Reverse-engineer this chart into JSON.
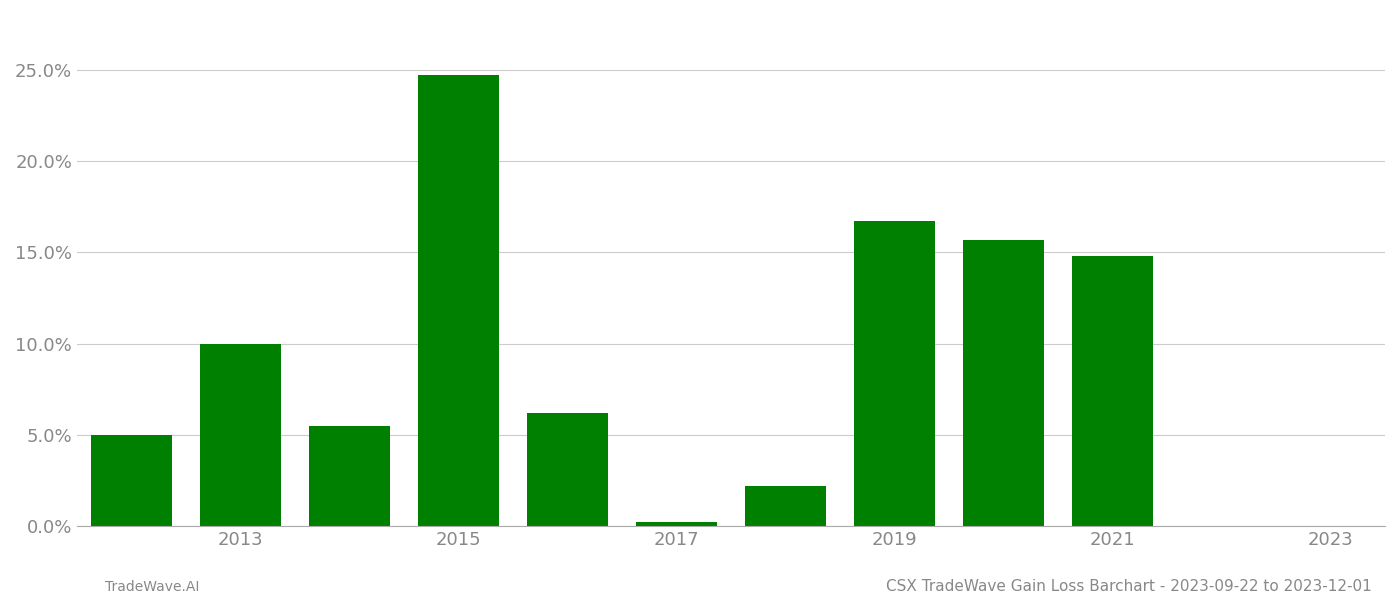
{
  "years": [
    2012,
    2013,
    2014,
    2015,
    2016,
    2017,
    2018,
    2019,
    2020,
    2021,
    2022
  ],
  "values": [
    0.05,
    0.1,
    0.055,
    0.247,
    0.062,
    0.002,
    0.022,
    0.167,
    0.157,
    0.148,
    0.0
  ],
  "bar_color": "#008000",
  "background_color": "#ffffff",
  "grid_color": "#cccccc",
  "title": "CSX TradeWave Gain Loss Barchart - 2023-09-22 to 2023-12-01",
  "footer_left": "TradeWave.AI",
  "ylim": [
    0,
    0.28
  ],
  "yticks": [
    0.0,
    0.05,
    0.1,
    0.15,
    0.2,
    0.25
  ],
  "xtick_labels": [
    "2013",
    "2015",
    "2017",
    "2019",
    "2021",
    "2023"
  ],
  "xtick_positions": [
    2013,
    2015,
    2017,
    2019,
    2021,
    2023
  ],
  "xlim_left": 2011.5,
  "xlim_right": 2023.5,
  "bar_width": 0.75,
  "title_fontsize": 11,
  "footer_fontsize": 10,
  "tick_fontsize": 13,
  "axis_label_color": "#888888",
  "spine_color": "#aaaaaa"
}
